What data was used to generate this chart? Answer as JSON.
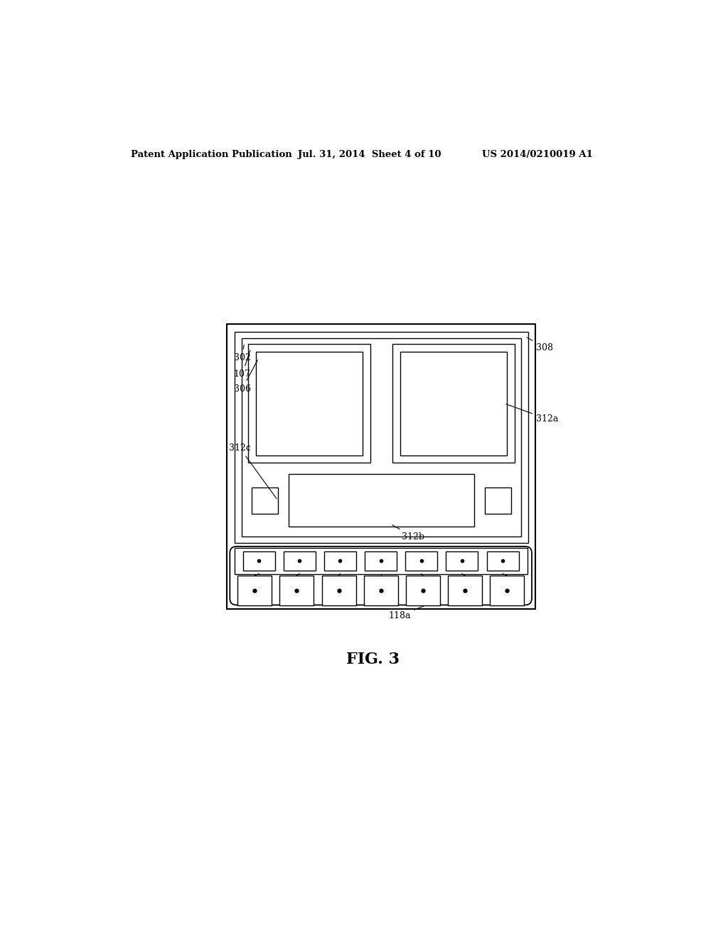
{
  "bg_color": "#ffffff",
  "line_color": "#000000",
  "header_text": "Patent Application Publication",
  "header_date": "Jul. 31, 2014  Sheet 4 of 10",
  "header_patent": "US 2014/0210019 A1",
  "fig_label": "FIG. 3"
}
